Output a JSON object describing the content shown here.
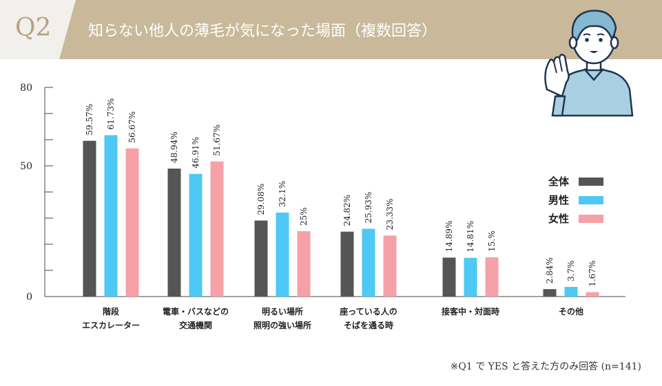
{
  "header": {
    "question_number": "Q2",
    "title": "知らない他人の薄毛が気になった場面（複数回答）"
  },
  "footnote": "※Q1 で YES と答えた方のみ回答 (n=141)",
  "colors": {
    "header_bg": "#c9b99a",
    "all": "#555555",
    "male": "#4ec8f4",
    "female": "#f6a0a8"
  },
  "chart_data": {
    "type": "bar",
    "title": "",
    "xlabel": "",
    "ylabel": "",
    "ylim": [
      0,
      80
    ],
    "yticks": [
      "0",
      "50",
      "80"
    ],
    "grid": false,
    "legend_position": "right",
    "categories": [
      [
        "階段",
        "エスカレーター"
      ],
      [
        "電車・バスなどの",
        "交通機関"
      ],
      [
        "明るい場所",
        "照明の強い場所"
      ],
      [
        "座っている人の",
        "そばを通る時"
      ],
      [
        "接客中・対面時"
      ],
      [
        "その他"
      ]
    ],
    "series": [
      {
        "name": "全体",
        "color": "#555555",
        "values": [
          59.57,
          48.94,
          29.08,
          24.82,
          14.89,
          2.84
        ],
        "labels": [
          "59.57%",
          "48.94%",
          "29.08%",
          "24.82%",
          "14.89%",
          "2.84%"
        ]
      },
      {
        "name": "男性",
        "color": "#4ec8f4",
        "values": [
          61.73,
          46.91,
          32.1,
          25.93,
          14.81,
          3.7
        ],
        "labels": [
          "61.73%",
          "46.91%",
          "32.1%",
          "25.93%",
          "14.81%",
          "3.7%"
        ]
      },
      {
        "name": "女性",
        "color": "#f6a0a8",
        "values": [
          56.67,
          51.67,
          25,
          23.33,
          15,
          1.67
        ],
        "labels": [
          "56.67%",
          "51.67%",
          "25%",
          "23.33%",
          "15.%",
          "1.67%"
        ]
      }
    ]
  }
}
